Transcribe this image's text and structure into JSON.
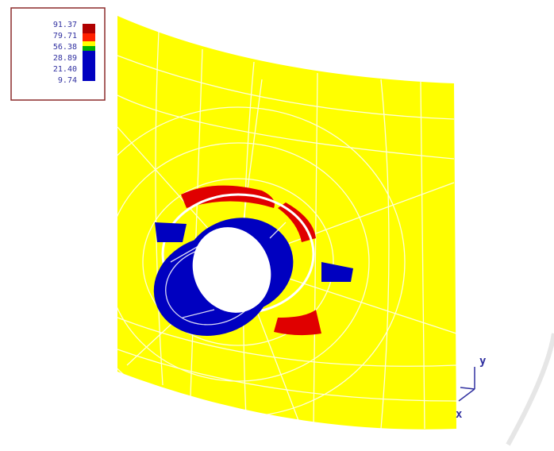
{
  "legend": {
    "labels": [
      "91.37",
      "79.71",
      "56.38",
      "28.89",
      "21.40",
      "9.74"
    ]
  },
  "axes": {
    "y": "y",
    "x": "x"
  }
}
